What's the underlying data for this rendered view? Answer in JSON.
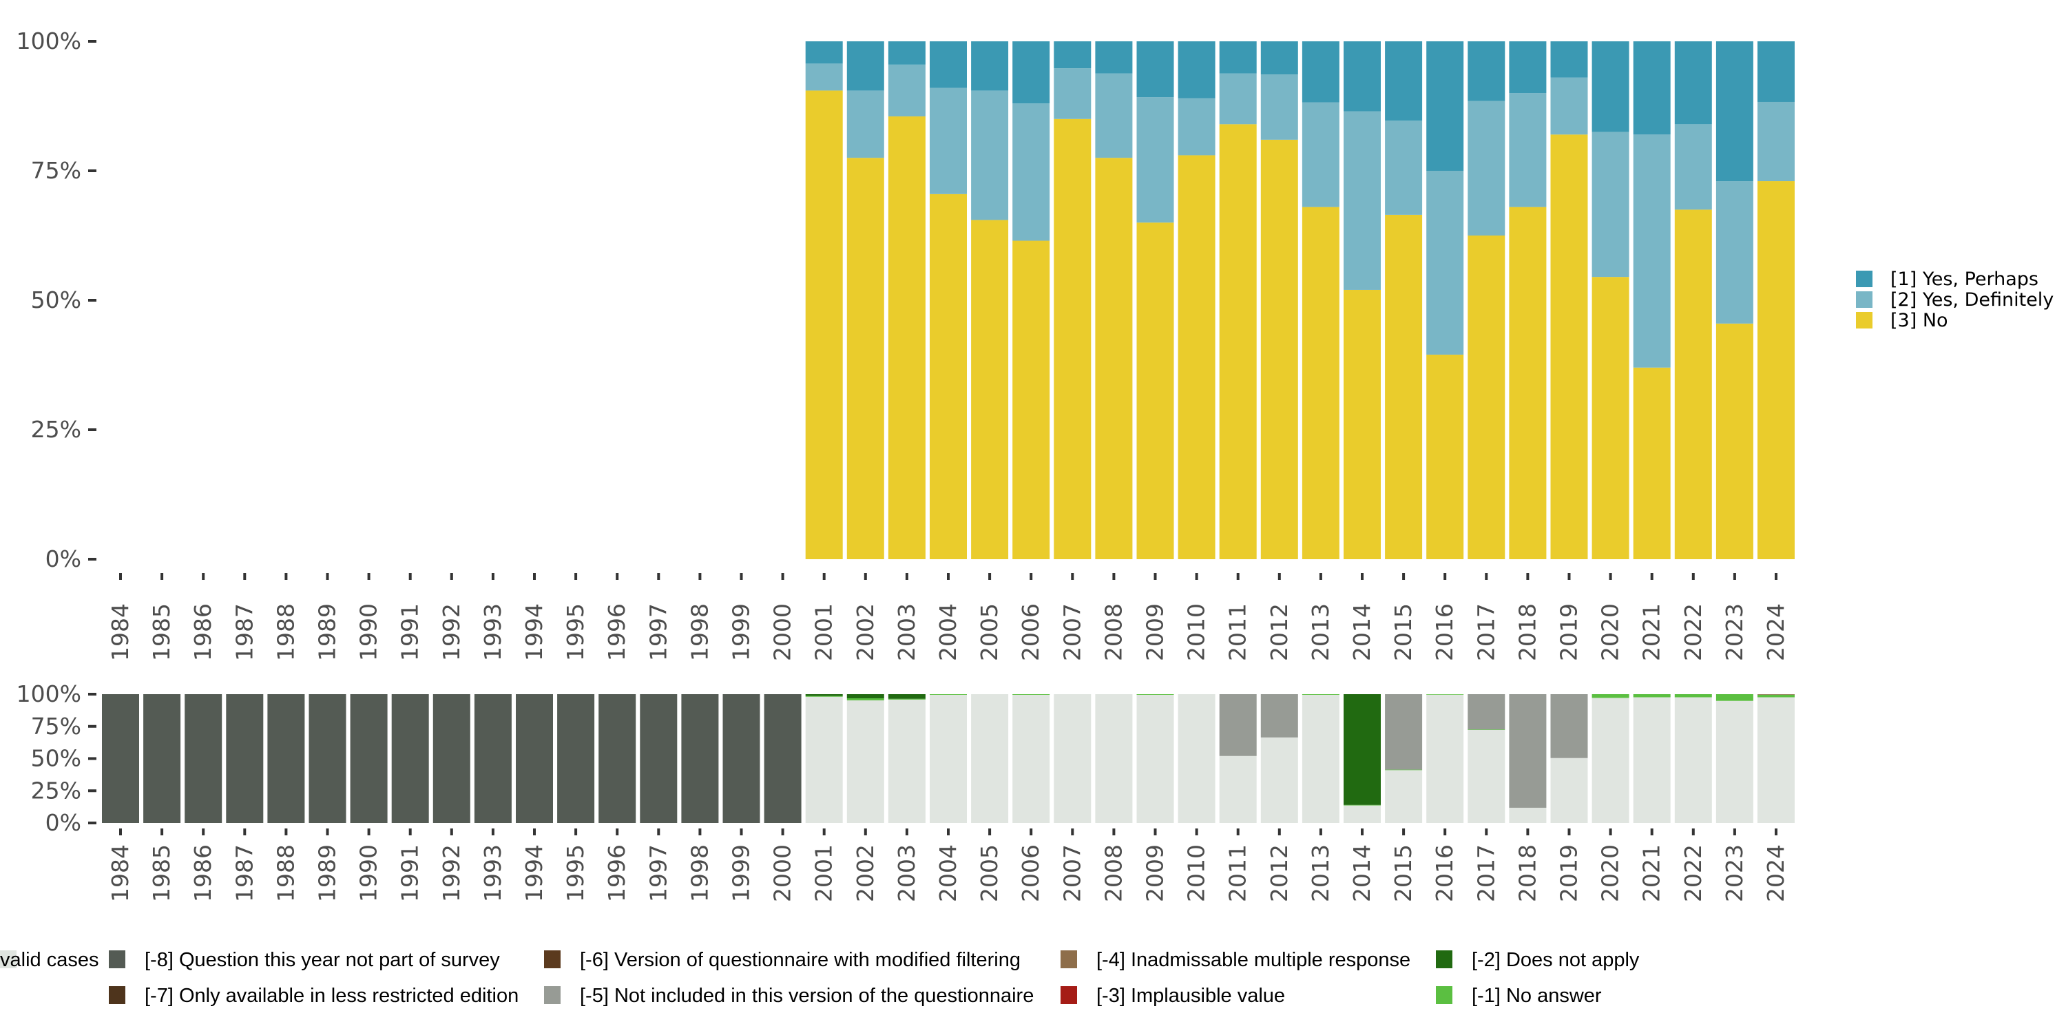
{
  "chart_data": [
    {
      "type": "bar",
      "stacked": true,
      "normalized": true,
      "title": "",
      "xlabel": "",
      "ylabel": "",
      "ylim": [
        0,
        100
      ],
      "yticks": [
        "0%",
        "25%",
        "50%",
        "75%",
        "100%"
      ],
      "legend_position": "right",
      "categories": [
        "1984",
        "1985",
        "1986",
        "1987",
        "1988",
        "1989",
        "1990",
        "1991",
        "1992",
        "1993",
        "1994",
        "1995",
        "1996",
        "1997",
        "1998",
        "1999",
        "2000",
        "2001",
        "2002",
        "2003",
        "2004",
        "2005",
        "2006",
        "2007",
        "2008",
        "2009",
        "2010",
        "2011",
        "2012",
        "2013",
        "2014",
        "2015",
        "2016",
        "2017",
        "2018",
        "2019",
        "2020",
        "2021",
        "2022",
        "2023",
        "2024"
      ],
      "series": [
        {
          "name": "[3] No",
          "color": "#EACC2C",
          "values": [
            null,
            null,
            null,
            null,
            null,
            null,
            null,
            null,
            null,
            null,
            null,
            null,
            null,
            null,
            null,
            null,
            null,
            90.5,
            77.5,
            85.5,
            70.5,
            65.5,
            61.5,
            85,
            77.5,
            65,
            78,
            84,
            81,
            68,
            52,
            66.5,
            39.5,
            62.5,
            68,
            82,
            54.5,
            37,
            67.5,
            45.5,
            73
          ]
        },
        {
          "name": "[2] Yes, Definitely",
          "color": "#79B6C6",
          "values": [
            null,
            null,
            null,
            null,
            null,
            null,
            null,
            null,
            null,
            null,
            null,
            null,
            null,
            null,
            null,
            null,
            null,
            5.2,
            13,
            10,
            20.5,
            25,
            26.5,
            9.8,
            16.3,
            24.2,
            11,
            9.8,
            12.6,
            20.2,
            34.5,
            18.2,
            35.5,
            26,
            22,
            11,
            28,
            45,
            16.5,
            27.5,
            15.3
          ]
        },
        {
          "name": "[1] Yes, Perhaps",
          "color": "#3B99B3",
          "values": [
            null,
            null,
            null,
            null,
            null,
            null,
            null,
            null,
            null,
            null,
            null,
            null,
            null,
            null,
            null,
            null,
            null,
            4.3,
            9.5,
            4.5,
            9,
            9.5,
            12,
            5.2,
            6.2,
            10.8,
            11,
            6.2,
            6.4,
            11.8,
            13.5,
            15.3,
            25,
            11.5,
            10,
            7,
            17.5,
            18,
            16,
            27,
            11.7
          ]
        }
      ]
    },
    {
      "type": "bar",
      "stacked": true,
      "normalized": true,
      "title": "",
      "xlabel": "",
      "ylabel": "",
      "ylim": [
        0,
        100
      ],
      "yticks": [
        "0%",
        "25%",
        "50%",
        "75%",
        "100%"
      ],
      "legend_position": "bottom",
      "categories": [
        "1984",
        "1985",
        "1986",
        "1987",
        "1988",
        "1989",
        "1990",
        "1991",
        "1992",
        "1993",
        "1994",
        "1995",
        "1996",
        "1997",
        "1998",
        "1999",
        "2000",
        "2001",
        "2002",
        "2003",
        "2004",
        "2005",
        "2006",
        "2007",
        "2008",
        "2009",
        "2010",
        "2011",
        "2012",
        "2013",
        "2014",
        "2015",
        "2016",
        "2017",
        "2018",
        "2019",
        "2020",
        "2021",
        "2022",
        "2023",
        "2024"
      ],
      "series": [
        {
          "name": "valid cases",
          "color": "#E0E5E0",
          "values": [
            0,
            0,
            0,
            0,
            0,
            0,
            0,
            0,
            0,
            0,
            0,
            0,
            0,
            0,
            0,
            0,
            0,
            98,
            95.2,
            95.8,
            99.5,
            100,
            99.5,
            100,
            100,
            99.5,
            100,
            52,
            66.4,
            99.5,
            13.6,
            41,
            99.6,
            72.2,
            11.8,
            50.4,
            97.1,
            97.6,
            97.6,
            94.8,
            97.6
          ]
        },
        {
          "name": "[-1] No answer",
          "color": "#5BBF41",
          "values": [
            0,
            0,
            0,
            0,
            0,
            0,
            0,
            0,
            0,
            0,
            0,
            0,
            0,
            0,
            0,
            0,
            0,
            0.6,
            1.6,
            0.6,
            0.5,
            0,
            0.5,
            0,
            0,
            0.5,
            0,
            0,
            0,
            0.5,
            0.4,
            0.4,
            0.4,
            0.4,
            0,
            0,
            2.9,
            2.4,
            2.4,
            5.2,
            2
          ]
        },
        {
          "name": "[-2] Does not apply",
          "color": "#216A11",
          "values": [
            0,
            0,
            0,
            0,
            0,
            0,
            0,
            0,
            0,
            0,
            0,
            0,
            0,
            0,
            0,
            0,
            0,
            1.4,
            3.2,
            3.6,
            0,
            0,
            0,
            0,
            0,
            0,
            0,
            0,
            0,
            0,
            86,
            0,
            0,
            0,
            0,
            0,
            0,
            0,
            0,
            0,
            0
          ]
        },
        {
          "name": "[-3] Implausible value",
          "color": "#A51C16",
          "values": [
            0,
            0,
            0,
            0,
            0,
            0,
            0,
            0,
            0,
            0,
            0,
            0,
            0,
            0,
            0,
            0,
            0,
            0,
            0,
            0,
            0,
            0,
            0,
            0,
            0,
            0,
            0,
            0,
            0,
            0,
            0,
            0,
            0,
            0,
            0,
            0,
            0,
            0,
            0,
            0,
            0
          ]
        },
        {
          "name": "[-4] Inadmissable multiple response",
          "color": "#8E6E4A",
          "values": [
            0,
            0,
            0,
            0,
            0,
            0,
            0,
            0,
            0,
            0,
            0,
            0,
            0,
            0,
            0,
            0,
            0,
            0,
            0,
            0,
            0,
            0,
            0,
            0,
            0,
            0,
            0,
            0,
            0,
            0,
            0,
            0,
            0,
            0,
            0,
            0,
            0,
            0,
            0,
            0,
            0.4
          ]
        },
        {
          "name": "[-5] Not included in this version of the questionnaire",
          "color": "#979B95",
          "values": [
            0,
            0,
            0,
            0,
            0,
            0,
            0,
            0,
            0,
            0,
            0,
            0,
            0,
            0,
            0,
            0,
            0,
            0,
            0,
            0,
            0,
            0,
            0,
            0,
            0,
            0,
            0,
            48,
            33.6,
            0,
            0,
            58.6,
            0,
            27.4,
            88.2,
            49.6,
            0,
            0,
            0,
            0,
            0
          ]
        },
        {
          "name": "[-6] Version of questionnaire with modified filtering",
          "color": "#5B3A1E",
          "values": [
            0,
            0,
            0,
            0,
            0,
            0,
            0,
            0,
            0,
            0,
            0,
            0,
            0,
            0,
            0,
            0,
            0,
            0,
            0,
            0,
            0,
            0,
            0,
            0,
            0,
            0,
            0,
            0,
            0,
            0,
            0,
            0,
            0,
            0,
            0,
            0,
            0,
            0,
            0,
            0,
            0
          ]
        },
        {
          "name": "[-7] Only available in less restricted edition",
          "color": "#4E341C",
          "values": [
            0,
            0,
            0,
            0,
            0,
            0,
            0,
            0,
            0,
            0,
            0,
            0,
            0,
            0,
            0,
            0,
            0,
            0,
            0,
            0,
            0,
            0,
            0,
            0,
            0,
            0,
            0,
            0,
            0,
            0,
            0,
            0,
            0,
            0,
            0,
            0,
            0,
            0,
            0,
            0,
            0
          ]
        },
        {
          "name": "[-8] Question this year not part of survey",
          "color": "#545B54",
          "values": [
            100,
            100,
            100,
            100,
            100,
            100,
            100,
            100,
            100,
            100,
            100,
            100,
            100,
            100,
            100,
            100,
            100,
            0,
            0,
            0,
            0,
            0,
            0,
            0,
            0,
            0,
            0,
            0,
            0,
            0,
            0,
            0,
            0,
            0,
            0,
            0,
            0,
            0,
            0,
            0,
            0
          ]
        }
      ]
    }
  ],
  "top_legend": [
    {
      "label": "[1] Yes, Perhaps",
      "color": "#3B99B3"
    },
    {
      "label": "[2] Yes, Definitely",
      "color": "#79B6C6"
    },
    {
      "label": "[3] No",
      "color": "#EACC2C"
    }
  ],
  "bottom_legend": [
    {
      "label": "[-8] Question this year not part of survey",
      "color": "#545B54"
    },
    {
      "label": "[-7] Only available in less restricted edition",
      "color": "#4E341C"
    },
    {
      "label": "[-6] Version of questionnaire with modified filtering",
      "color": "#5B3A1E"
    },
    {
      "label": "[-5] Not included in this version of the questionnaire",
      "color": "#979B95"
    },
    {
      "label": "[-4] Inadmissable multiple response",
      "color": "#8E6E4A"
    },
    {
      "label": "[-3] Implausible value",
      "color": "#A51C16"
    },
    {
      "label": "[-2] Does not apply",
      "color": "#216A11"
    },
    {
      "label": "[-1] No answer",
      "color": "#5BBF41"
    },
    {
      "label": "valid cases",
      "color": "#E0E5E0"
    }
  ]
}
